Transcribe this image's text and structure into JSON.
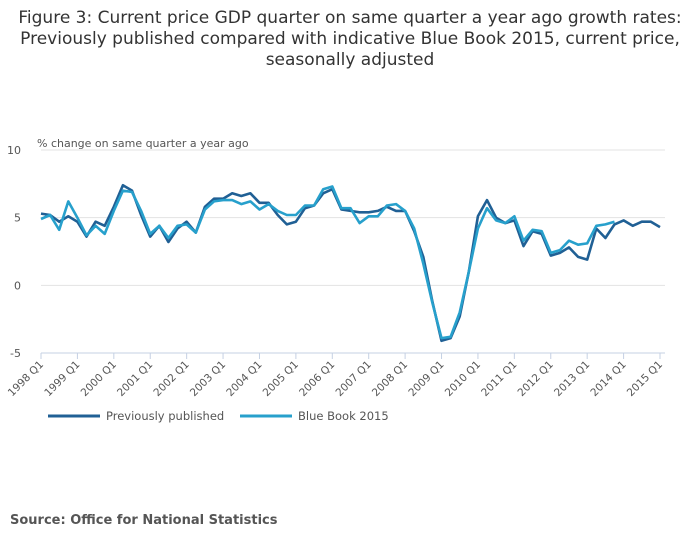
{
  "chart_data": {
    "type": "line",
    "title": "Figure 3: Current price GDP quarter on same quarter a year ago growth rates: Previously published compared with indicative Blue Book 2015, current price, seasonally adjusted",
    "ylabel": "% change on same quarter a year ago",
    "xlabel": "",
    "ylim": [
      -5,
      10
    ],
    "yticks": [
      "10",
      "5",
      "0",
      "-5"
    ],
    "xtick_labels": [
      "1998 Q1",
      "1999 Q1",
      "2000 Q1",
      "2001 Q1",
      "2002 Q1",
      "2003 Q1",
      "2004 Q1",
      "2005 Q1",
      "2006 Q1",
      "2007 Q1",
      "2008 Q1",
      "2009 Q1",
      "2010 Q1",
      "2011 Q1",
      "2012 Q1",
      "2013 Q1",
      "2014 Q1",
      "2015 Q1"
    ],
    "n_quarters": 69,
    "grid": true,
    "legend_position": "bottom-left",
    "series": [
      {
        "name": "Previously published",
        "color": "#206095",
        "values": [
          5.3,
          5.2,
          4.7,
          5.1,
          4.7,
          3.6,
          4.7,
          4.4,
          5.8,
          7.4,
          7.0,
          5.2,
          3.6,
          4.4,
          3.2,
          4.2,
          4.7,
          3.9,
          5.8,
          6.4,
          6.4,
          6.8,
          6.6,
          6.8,
          6.1,
          6.1,
          5.2,
          4.5,
          4.7,
          5.7,
          5.9,
          6.8,
          7.1,
          5.6,
          5.5,
          5.4,
          5.4,
          5.5,
          5.8,
          5.5,
          5.5,
          4.0,
          2.1,
          -1.2,
          -4.1,
          -3.9,
          -2.3,
          1.0,
          5.1,
          6.3,
          5.0,
          4.6,
          4.8,
          2.9,
          4.0,
          3.8,
          2.2,
          2.4,
          2.8,
          2.1,
          1.9,
          4.2,
          3.5,
          4.5,
          4.8,
          4.4,
          4.7,
          4.7,
          4.3
        ]
      },
      {
        "name": "Blue Book 2015",
        "color": "#27a0cc",
        "values": [
          4.9,
          5.2,
          4.1,
          6.2,
          5.0,
          3.7,
          4.4,
          3.8,
          5.5,
          7.0,
          6.9,
          5.5,
          3.8,
          4.4,
          3.5,
          4.4,
          4.5,
          3.9,
          5.6,
          6.2,
          6.3,
          6.3,
          6.0,
          6.2,
          5.6,
          6.0,
          5.5,
          5.2,
          5.2,
          5.9,
          5.9,
          7.1,
          7.3,
          5.7,
          5.7,
          4.6,
          5.1,
          5.1,
          5.9,
          6.0,
          5.5,
          4.2,
          1.6,
          -1.3,
          -3.9,
          -3.8,
          -2.0,
          1.0,
          4.2,
          5.7,
          4.8,
          4.6,
          5.1,
          3.3,
          4.1,
          4.0,
          2.4,
          2.6,
          3.3,
          3.0,
          3.1,
          4.4,
          4.5,
          4.7
        ]
      }
    ]
  },
  "source": "Source: Office for National Statistics"
}
